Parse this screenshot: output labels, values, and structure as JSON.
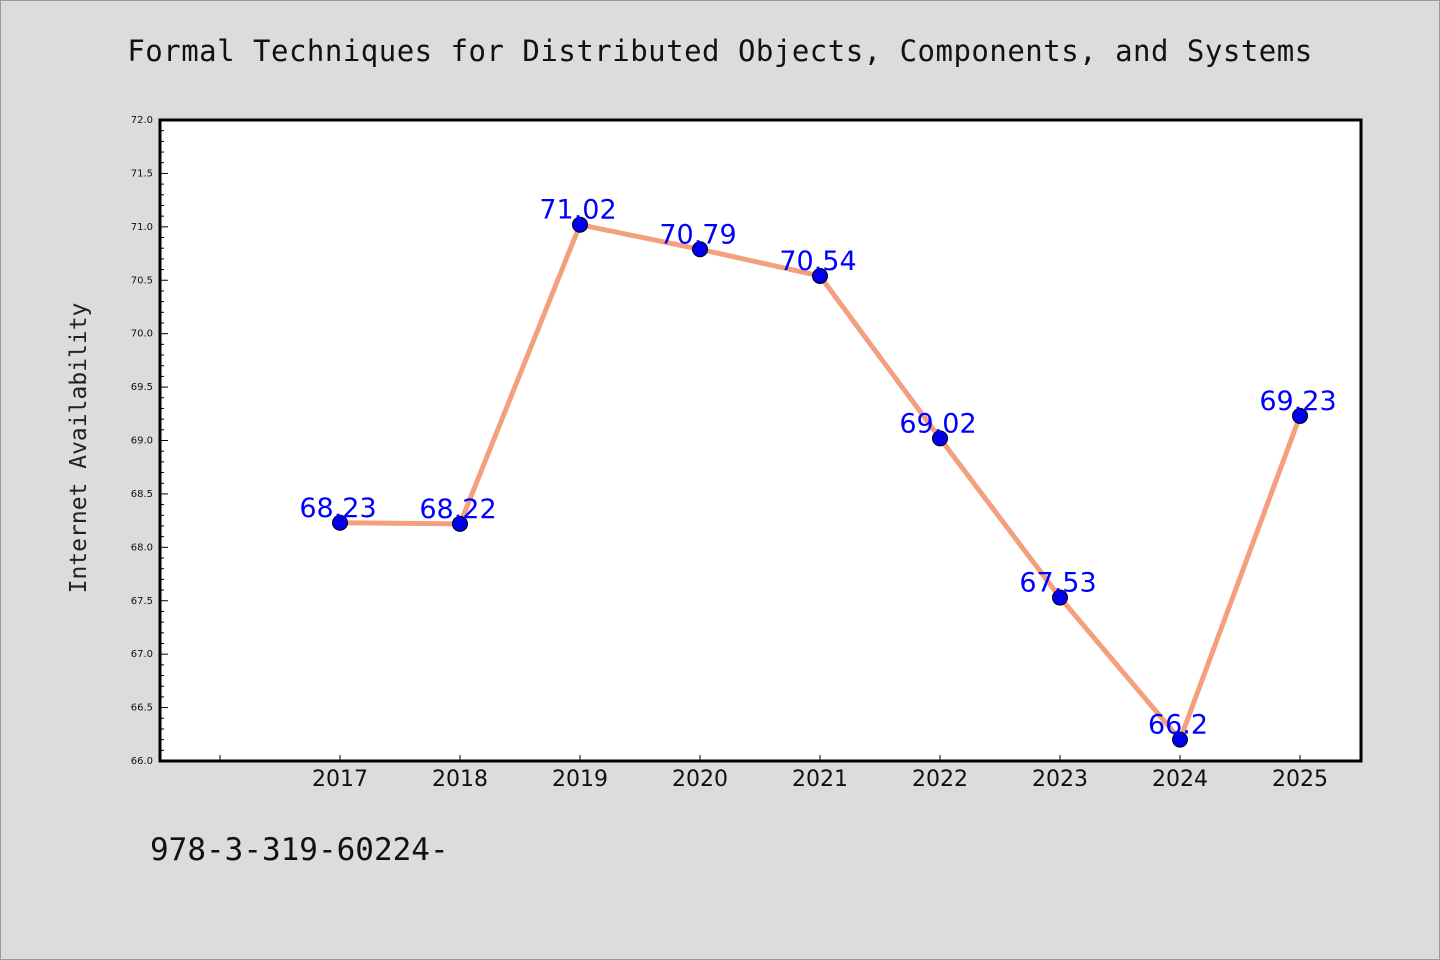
{
  "chart_data": {
    "type": "line",
    "title": "Formal Techniques for Distributed Objects, Components, and Systems",
    "xlabel": "",
    "ylabel": "Internet Availability",
    "categories": [
      "2017",
      "2018",
      "2019",
      "2020",
      "2021",
      "2022",
      "2023",
      "2024",
      "2025"
    ],
    "series": [
      {
        "values": [
          68.23,
          68.22,
          71.02,
          70.79,
          70.54,
          69.02,
          67.53,
          66.2,
          69.23
        ],
        "labels": [
          "68.23",
          "68.22",
          "71.02",
          "70.79",
          "70.54",
          "69.02",
          "67.53",
          "66.2",
          "69.23"
        ],
        "line_color": "#f4a07e",
        "marker_color": "#0000ee"
      }
    ],
    "ylim": [
      66.0,
      72.0
    ],
    "yticks": [
      "66.0",
      "66.5",
      "67.0",
      "67.5",
      "68.0",
      "68.5",
      "69.0",
      "69.5",
      "70.0",
      "70.5",
      "71.0",
      "71.5",
      "72.0"
    ],
    "grid": false,
    "legend": "none",
    "label_color": "#0000ff"
  },
  "footer": {
    "text": "978-3-319-60224-"
  }
}
